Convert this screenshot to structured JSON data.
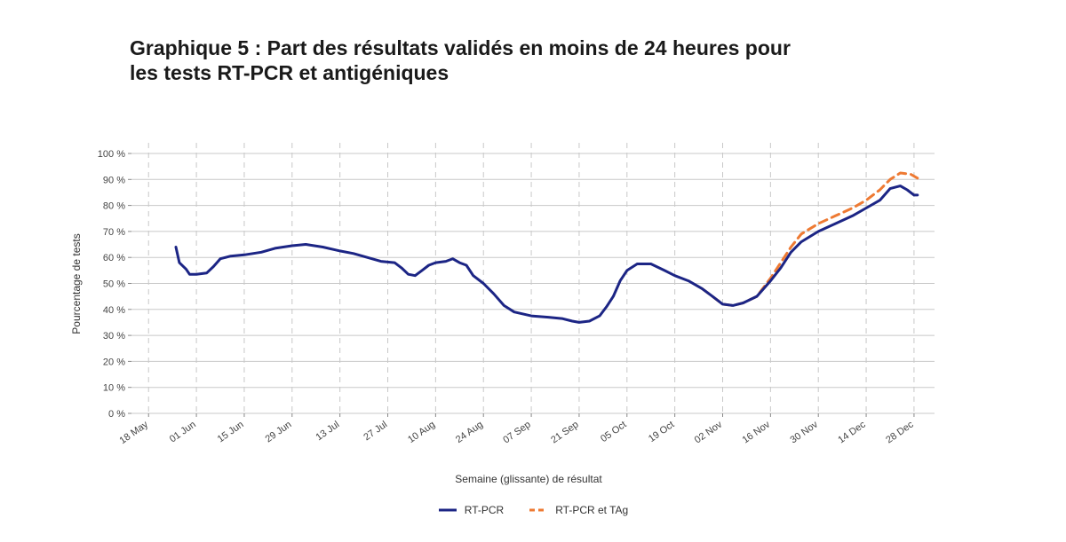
{
  "title_line1": "Graphique 5 : Part des résultats validés en moins de 24 heures pour",
  "title_line2": "les tests RT-PCR et antigéniques",
  "colors": {
    "rtpcr": "#1c2585",
    "rtpcr_tag": "#ee7a33",
    "grid": "#c8c8c8",
    "text": "#444444"
  },
  "chart_data": {
    "type": "line",
    "title": "Graphique 5 : Part des résultats validés en moins de 24 heures pour les tests RT-PCR et antigéniques",
    "xlabel": "Semaine (glissante) de résultat",
    "ylabel": "Pourcentage de tests",
    "ylim": [
      0,
      100
    ],
    "xlim": [
      "2020-05-13",
      "2021-01-03"
    ],
    "y_ticks": [
      0,
      10,
      20,
      30,
      40,
      50,
      60,
      70,
      80,
      90,
      100
    ],
    "y_tick_labels": [
      "0 %",
      "10 %",
      "20 %",
      "30 %",
      "40 %",
      "50 %",
      "60 %",
      "70 %",
      "80 %",
      "90 %",
      "100 %"
    ],
    "x_tick_dates": [
      "2020-05-18",
      "2020-06-01",
      "2020-06-15",
      "2020-06-29",
      "2020-07-13",
      "2020-07-27",
      "2020-08-10",
      "2020-08-24",
      "2020-09-07",
      "2020-09-21",
      "2020-10-05",
      "2020-10-19",
      "2020-11-02",
      "2020-11-16",
      "2020-11-30",
      "2020-12-14",
      "2020-12-28"
    ],
    "x_tick_labels": [
      "18 May",
      "01 Jun",
      "15 Jun",
      "29 Jun",
      "13 Jul",
      "27 Jul",
      "10 Aug",
      "24 Aug",
      "07 Sep",
      "21 Sep",
      "05 Oct",
      "19 Oct",
      "02 Nov",
      "16 Nov",
      "30 Nov",
      "14 Dec",
      "28 Dec"
    ],
    "grid": true,
    "legend_position": "bottom",
    "series": [
      {
        "name": "RT-PCR",
        "style": "solid",
        "points": [
          [
            "2020-05-26",
            64
          ],
          [
            "2020-05-27",
            58
          ],
          [
            "2020-05-29",
            55.5
          ],
          [
            "2020-05-30",
            53.5
          ],
          [
            "2020-06-01",
            53.5
          ],
          [
            "2020-06-04",
            54
          ],
          [
            "2020-06-06",
            56.5
          ],
          [
            "2020-06-08",
            59.5
          ],
          [
            "2020-06-11",
            60.5
          ],
          [
            "2020-06-15",
            61
          ],
          [
            "2020-06-20",
            62
          ],
          [
            "2020-06-24",
            63.5
          ],
          [
            "2020-06-29",
            64.5
          ],
          [
            "2020-07-03",
            65
          ],
          [
            "2020-07-08",
            64
          ],
          [
            "2020-07-13",
            62.5
          ],
          [
            "2020-07-17",
            61.5
          ],
          [
            "2020-07-21",
            60
          ],
          [
            "2020-07-25",
            58.5
          ],
          [
            "2020-07-29",
            58
          ],
          [
            "2020-07-31",
            56
          ],
          [
            "2020-08-02",
            53.5
          ],
          [
            "2020-08-04",
            53
          ],
          [
            "2020-08-06",
            55
          ],
          [
            "2020-08-08",
            57
          ],
          [
            "2020-08-10",
            58
          ],
          [
            "2020-08-13",
            58.5
          ],
          [
            "2020-08-15",
            59.5
          ],
          [
            "2020-08-17",
            58
          ],
          [
            "2020-08-19",
            57
          ],
          [
            "2020-08-21",
            53
          ],
          [
            "2020-08-24",
            50
          ],
          [
            "2020-08-27",
            46
          ],
          [
            "2020-08-30",
            41.5
          ],
          [
            "2020-09-02",
            39
          ],
          [
            "2020-09-07",
            37.5
          ],
          [
            "2020-09-12",
            37
          ],
          [
            "2020-09-16",
            36.5
          ],
          [
            "2020-09-19",
            35.5
          ],
          [
            "2020-09-21",
            35
          ],
          [
            "2020-09-24",
            35.5
          ],
          [
            "2020-09-27",
            37.5
          ],
          [
            "2020-09-29",
            41
          ],
          [
            "2020-10-01",
            45
          ],
          [
            "2020-10-03",
            51
          ],
          [
            "2020-10-05",
            55
          ],
          [
            "2020-10-08",
            57.5
          ],
          [
            "2020-10-12",
            57.5
          ],
          [
            "2020-10-16",
            55
          ],
          [
            "2020-10-19",
            53
          ],
          [
            "2020-10-23",
            51
          ],
          [
            "2020-10-27",
            48
          ],
          [
            "2020-10-30",
            45
          ],
          [
            "2020-11-02",
            42
          ],
          [
            "2020-11-05",
            41.5
          ],
          [
            "2020-11-08",
            42.5
          ],
          [
            "2020-11-12",
            45
          ],
          [
            "2020-11-16",
            51
          ],
          [
            "2020-11-19",
            56
          ],
          [
            "2020-11-22",
            62
          ],
          [
            "2020-11-25",
            66
          ],
          [
            "2020-11-30",
            70
          ],
          [
            "2020-12-05",
            73
          ],
          [
            "2020-12-10",
            76
          ],
          [
            "2020-12-14",
            79
          ],
          [
            "2020-12-18",
            82
          ],
          [
            "2020-12-21",
            86.5
          ],
          [
            "2020-12-24",
            87.5
          ],
          [
            "2020-12-26",
            86
          ],
          [
            "2020-12-28",
            84
          ],
          [
            "2020-12-29",
            84
          ]
        ]
      },
      {
        "name": "RT-PCR et TAg",
        "style": "dashed",
        "points": [
          [
            "2020-10-27",
            48
          ],
          [
            "2020-10-30",
            45
          ],
          [
            "2020-11-02",
            42
          ],
          [
            "2020-11-05",
            41.5
          ],
          [
            "2020-11-08",
            42.5
          ],
          [
            "2020-11-12",
            45
          ],
          [
            "2020-11-16",
            52
          ],
          [
            "2020-11-19",
            58
          ],
          [
            "2020-11-22",
            64
          ],
          [
            "2020-11-25",
            69
          ],
          [
            "2020-11-30",
            73
          ],
          [
            "2020-12-05",
            76
          ],
          [
            "2020-12-10",
            79
          ],
          [
            "2020-12-14",
            82
          ],
          [
            "2020-12-18",
            86
          ],
          [
            "2020-12-21",
            90
          ],
          [
            "2020-12-24",
            92.5
          ],
          [
            "2020-12-27",
            92
          ],
          [
            "2020-12-29",
            90.5
          ]
        ]
      }
    ]
  }
}
